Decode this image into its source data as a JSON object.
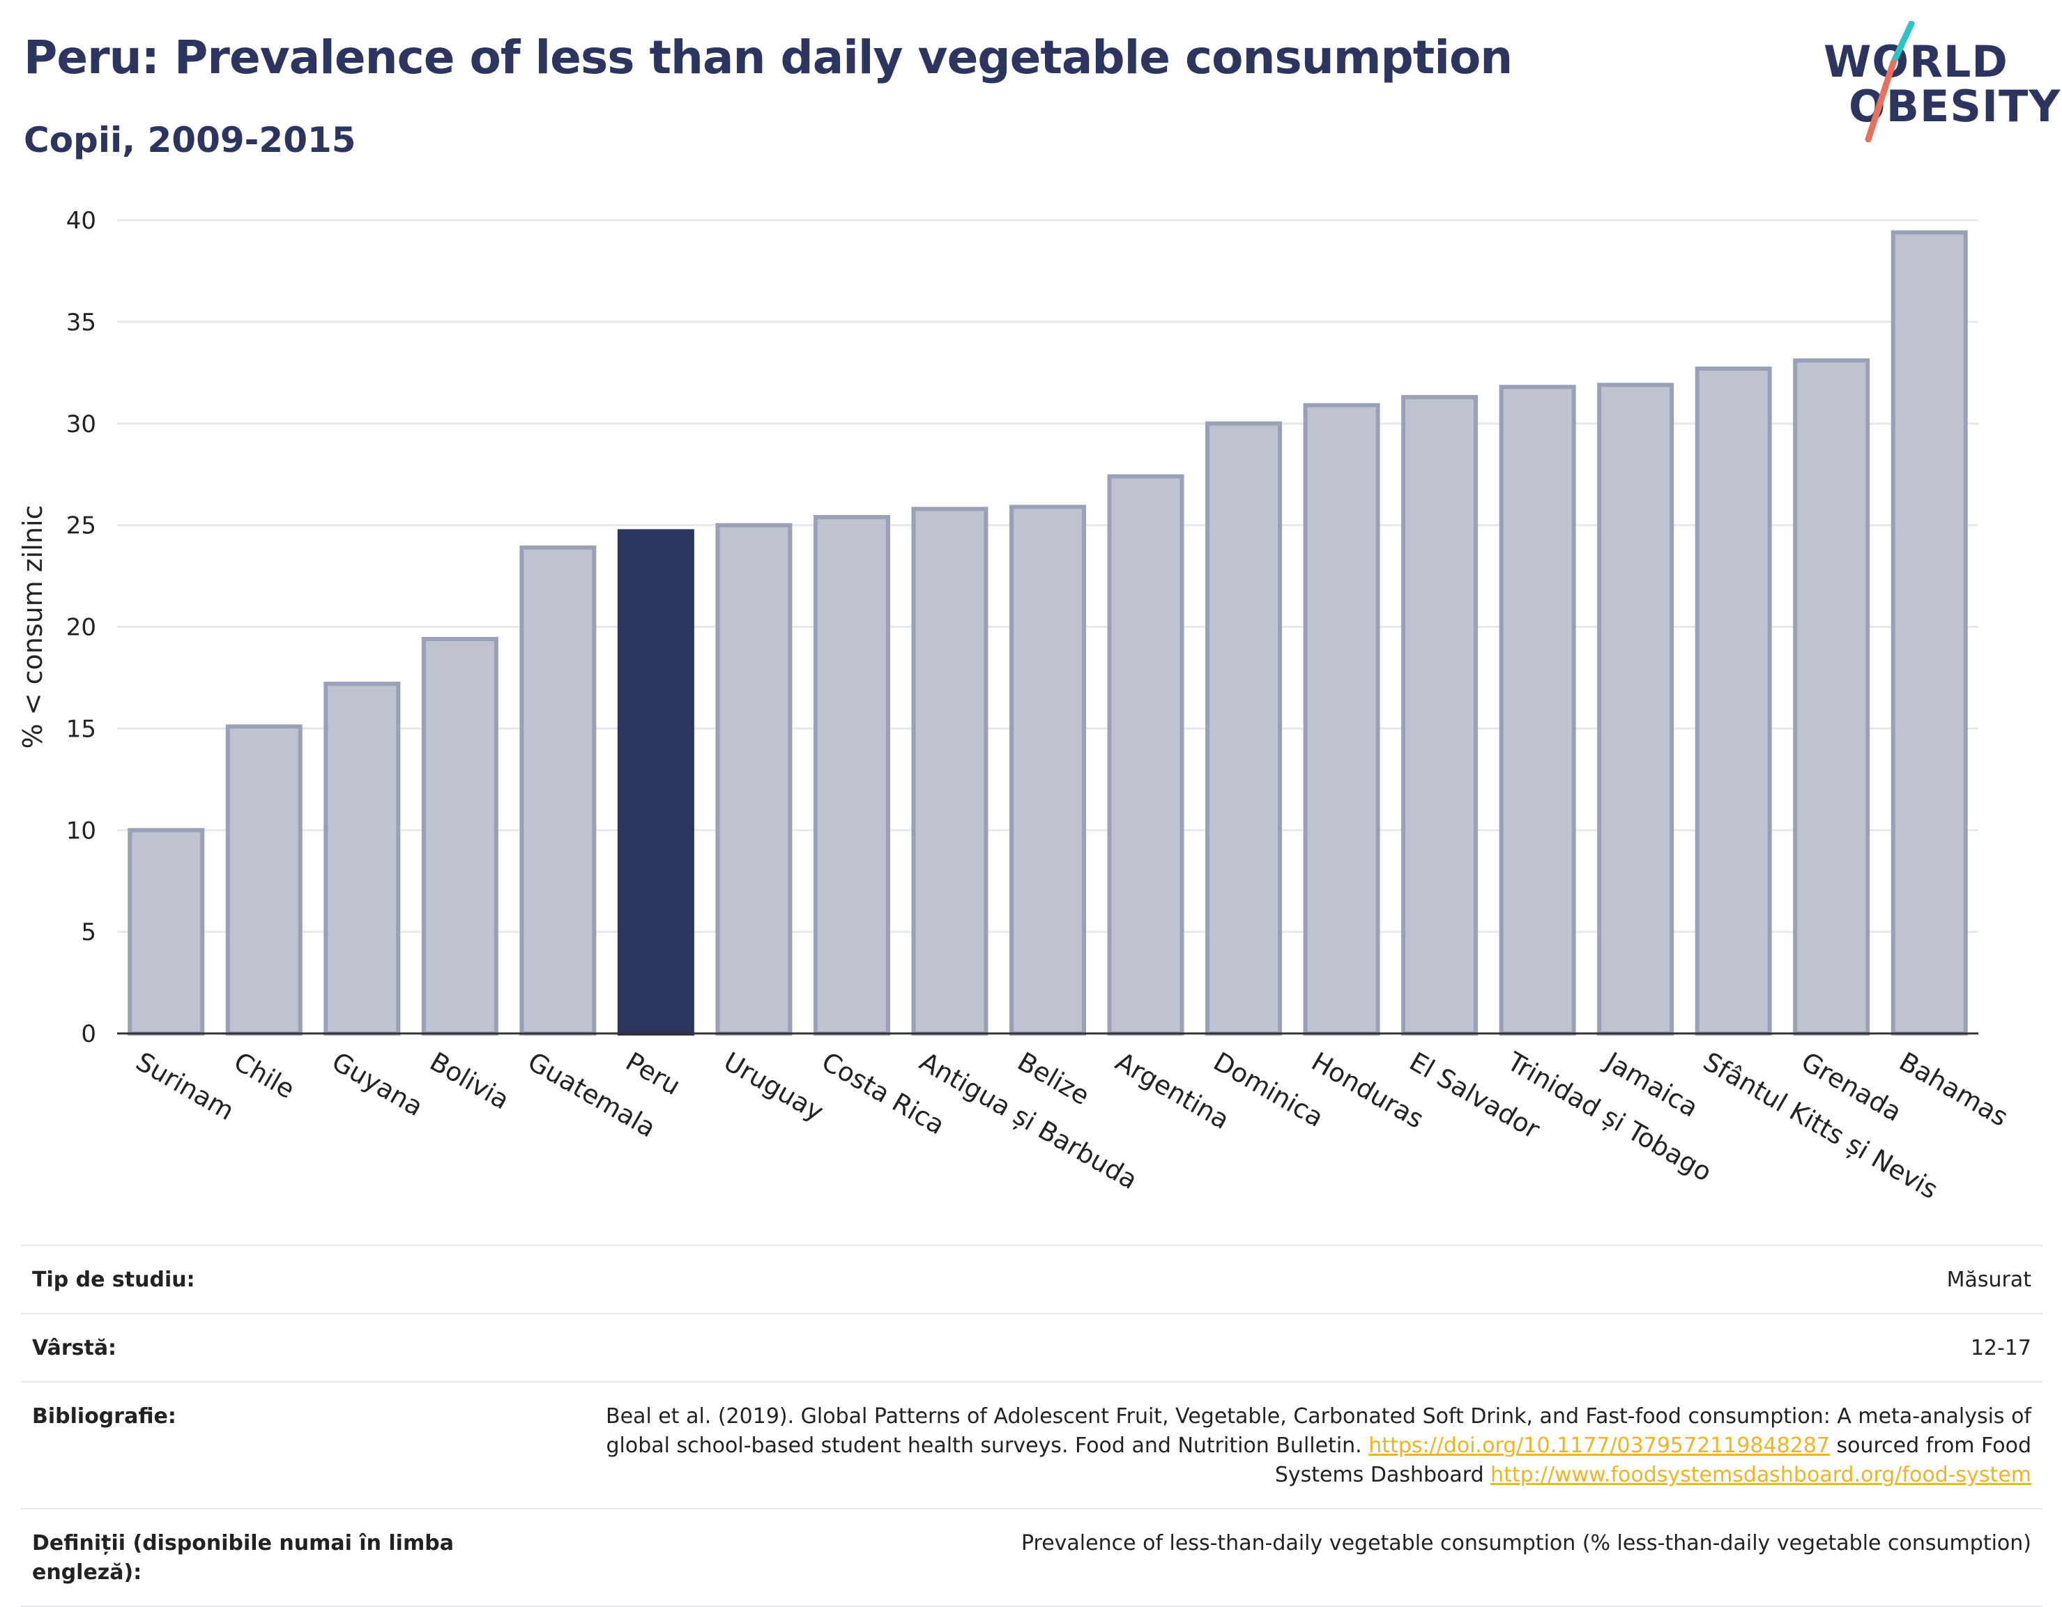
{
  "header": {
    "title": "Peru: Prevalence of less than daily vegetable consumption",
    "subtitle": "Copii, 2009-2015"
  },
  "logo": {
    "line1": "WORLD",
    "line2": "OBESITY",
    "colors": {
      "text": "#2b3560",
      "teal": "#2ec4c6",
      "coral": "#e8705f"
    }
  },
  "colors": {
    "bar": "#bfc3d0",
    "bar_stroke": "#9aa0b5",
    "highlight": "#2b3560",
    "grid": "#e6e8ec",
    "axis": "#333333"
  },
  "chart_data": {
    "type": "bar",
    "title": "",
    "xlabel": "",
    "ylabel": "% < consum zilnic",
    "ylim": [
      0,
      40
    ],
    "yticks": [
      0,
      5,
      10,
      15,
      20,
      25,
      30,
      35,
      40
    ],
    "grid": true,
    "highlight": "Peru",
    "categories": [
      "Surinam",
      "Chile",
      "Guyana",
      "Bolivia",
      "Guatemala",
      "Peru",
      "Uruguay",
      "Costa Rica",
      "Antigua și Barbuda",
      "Belize",
      "Argentina",
      "Dominica",
      "Honduras",
      "El Salvador",
      "Trinidad și Tobago",
      "Jamaica",
      "Sfântul Kitts și Nevis",
      "Grenada",
      "Bahamas"
    ],
    "values": [
      10.0,
      15.1,
      17.2,
      19.4,
      23.9,
      24.7,
      25.0,
      25.4,
      25.8,
      25.9,
      27.4,
      30.0,
      30.9,
      31.3,
      31.8,
      31.9,
      32.7,
      33.1,
      39.4
    ]
  },
  "meta": {
    "rows": [
      {
        "label": "Tip de studiu:",
        "value": "Măsurat"
      },
      {
        "label": "Vârstă:",
        "value": "12-17"
      },
      {
        "label": "Bibliografie:",
        "text1": "Beal et al. (2019). Global Patterns of Adolescent Fruit, Vegetable, Carbonated Soft Drink, and Fast-food consumption: A meta-analysis of global school-based student health surveys. Food and Nutrition Bulletin.",
        "link1": "https://doi.org/10.1177/0379572119848287",
        "text2": "sourced from Food Systems Dashboard",
        "link2": "http://www.foodsystemsdashboard.org/food-system"
      },
      {
        "label": "Definiții (disponibile numai în limba engleză):",
        "value": "Prevalence of less-than-daily vegetable consumption (% less-than-daily vegetable consumption)"
      }
    ]
  }
}
